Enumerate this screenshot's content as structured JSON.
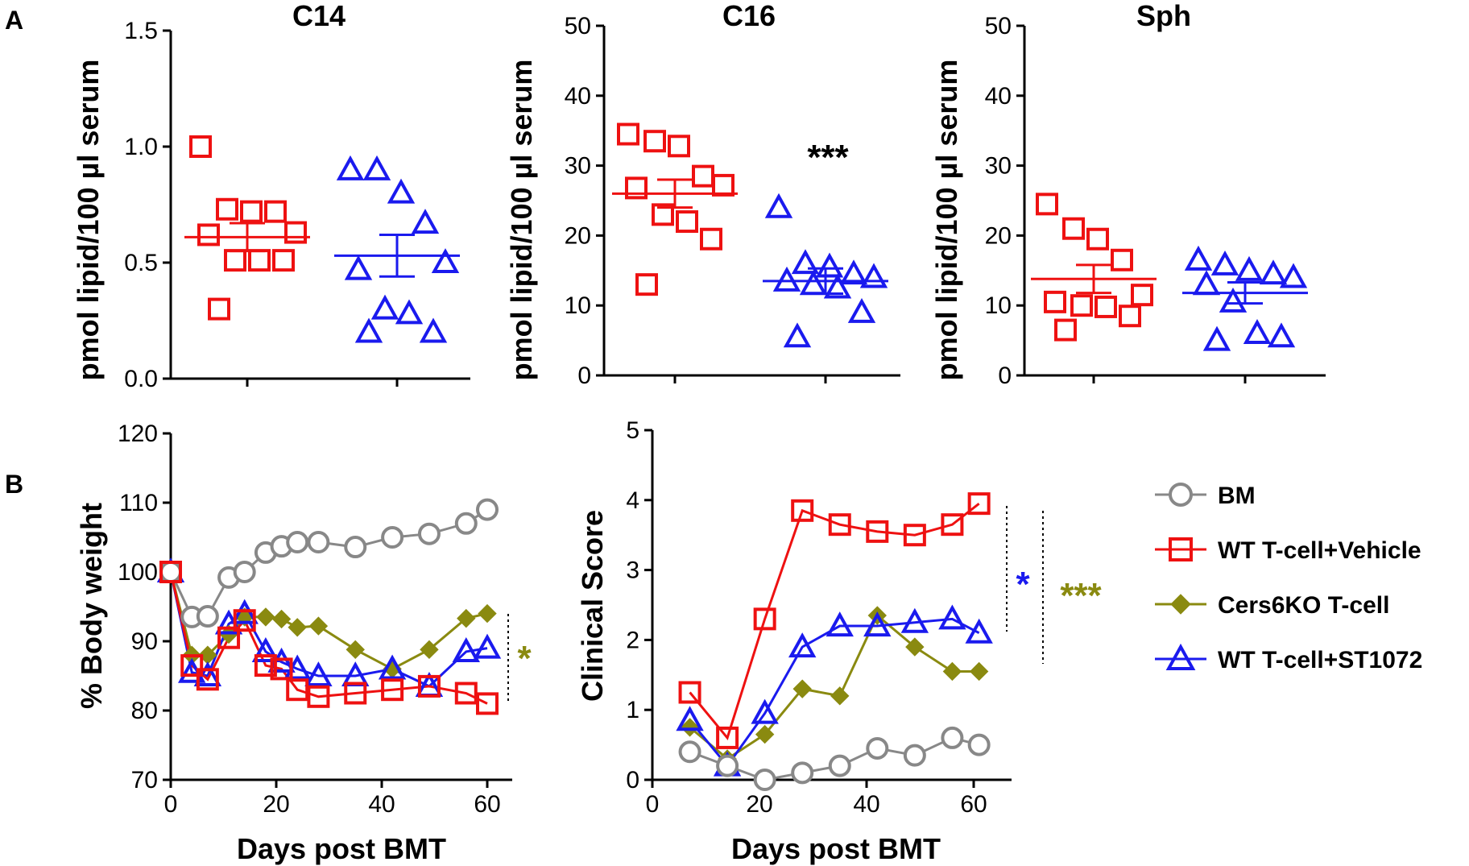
{
  "panel_labels": {
    "a": "A",
    "b": "B"
  },
  "colors": {
    "red": "#ee1111",
    "blue": "#1a1aee",
    "olive": "#8a8a10",
    "gray": "#888888",
    "black": "#000000"
  },
  "chart_data": [
    {
      "type": "scatter",
      "title": "C14",
      "ylabel": "pmol lipid/100 µl serum",
      "ylim": [
        0,
        1.5
      ],
      "yticks": [
        "0.0",
        "0.5",
        "1.0",
        "1.5"
      ],
      "groups": [
        {
          "name": "red squares",
          "color": "#ee1111",
          "marker": "square",
          "values": [
            1.0,
            0.73,
            0.72,
            0.72,
            0.63,
            0.62,
            0.51,
            0.51,
            0.51,
            0.3
          ],
          "mean": 0.61,
          "sem": 0.06
        },
        {
          "name": "blue triangles",
          "color": "#1a1aee",
          "marker": "triangle",
          "values": [
            0.9,
            0.9,
            0.8,
            0.67,
            0.5,
            0.47,
            0.3,
            0.28,
            0.2,
            0.2
          ],
          "mean": 0.53,
          "sem": 0.09
        }
      ],
      "significance": ""
    },
    {
      "type": "scatter",
      "title": "C16",
      "ylabel": "pmol lipid/100 µl serum",
      "ylim": [
        0,
        50
      ],
      "yticks": [
        "0",
        "10",
        "20",
        "30",
        "40",
        "50"
      ],
      "groups": [
        {
          "name": "red squares",
          "color": "#ee1111",
          "marker": "square",
          "values": [
            34.5,
            33.5,
            32.8,
            28.5,
            27.2,
            26.8,
            23.0,
            22.0,
            19.5,
            13.0
          ],
          "mean": 26.0,
          "sem": 2.0
        },
        {
          "name": "blue triangles",
          "color": "#1a1aee",
          "marker": "triangle",
          "values": [
            24.0,
            16.0,
            15.5,
            14.5,
            14.0,
            13.5,
            13.0,
            12.5,
            9.0,
            5.5
          ],
          "mean": 13.5,
          "sem": 1.8
        }
      ],
      "significance": "***"
    },
    {
      "type": "scatter",
      "title": "Sph",
      "ylabel": "pmol lipid/100 µl serum",
      "ylim": [
        0,
        50
      ],
      "yticks": [
        "0",
        "10",
        "20",
        "30",
        "40",
        "50"
      ],
      "groups": [
        {
          "name": "red squares",
          "color": "#ee1111",
          "marker": "square",
          "values": [
            24.5,
            21.0,
            19.5,
            16.5,
            11.5,
            10.5,
            10.0,
            9.8,
            8.5,
            6.5
          ],
          "mean": 13.8,
          "sem": 2.0
        },
        {
          "name": "blue triangles",
          "color": "#1a1aee",
          "marker": "triangle",
          "values": [
            16.5,
            15.8,
            15.0,
            14.5,
            14.0,
            13.0,
            10.5,
            6.0,
            5.5,
            5.0
          ],
          "mean": 11.8,
          "sem": 1.5
        }
      ],
      "significance": ""
    },
    {
      "type": "line",
      "title": "",
      "xlabel": "Days post BMT",
      "ylabel": "% Body weight",
      "xlim": [
        0,
        65
      ],
      "ylim": [
        70,
        120
      ],
      "xticks": [
        "0",
        "20",
        "40",
        "60"
      ],
      "yticks": [
        "70",
        "80",
        "90",
        "100",
        "110",
        "120"
      ],
      "series": [
        {
          "name": "BM",
          "color": "#888888",
          "marker": "circle",
          "x": [
            0,
            4,
            7,
            11,
            14,
            18,
            21,
            24,
            28,
            35,
            42,
            49,
            56,
            60
          ],
          "y": [
            100,
            93.5,
            93.6,
            99.2,
            100,
            102.8,
            103.7,
            104.3,
            104.3,
            103.6,
            105,
            105.5,
            107,
            109
          ]
        },
        {
          "name": "WT T-cell+Vehicle",
          "color": "#ee1111",
          "marker": "square",
          "x": [
            0,
            4,
            7,
            11,
            14,
            18,
            21,
            24,
            28,
            35,
            42,
            49,
            56,
            60
          ],
          "y": [
            100,
            86.5,
            84.5,
            90.5,
            93,
            86.5,
            86,
            83,
            82,
            82.5,
            83,
            83.5,
            82.5,
            81
          ]
        },
        {
          "name": "Cers6KO T-cell",
          "color": "#8a8a10",
          "marker": "diamond",
          "x": [
            0,
            4,
            7,
            11,
            14,
            18,
            21,
            24,
            28,
            35,
            42,
            49,
            56,
            60
          ],
          "y": [
            100,
            88,
            88,
            91,
            93.5,
            93.5,
            93.2,
            92,
            92.2,
            88.8,
            86,
            88.8,
            93.3,
            94
          ]
        },
        {
          "name": "WT T-cell+ST1072",
          "color": "#1a1aee",
          "marker": "triangle",
          "x": [
            0,
            4,
            7,
            11,
            14,
            18,
            21,
            24,
            28,
            35,
            42,
            49,
            56,
            60
          ],
          "y": [
            100,
            85.5,
            85,
            92.5,
            94,
            88.5,
            87,
            86,
            85,
            85,
            86,
            83.5,
            88.5,
            89
          ]
        }
      ],
      "significance": "*"
    },
    {
      "type": "line",
      "title": "",
      "xlabel": "Days post BMT",
      "ylabel": "Clinical Score",
      "xlim": [
        0,
        66
      ],
      "ylim": [
        0,
        5
      ],
      "xticks": [
        "0",
        "20",
        "40",
        "60"
      ],
      "yticks": [
        "0",
        "1",
        "2",
        "3",
        "4",
        "5"
      ],
      "series": [
        {
          "name": "BM",
          "color": "#888888",
          "marker": "circle",
          "x": [
            7,
            14,
            21,
            28,
            35,
            42,
            49,
            56,
            61
          ],
          "y": [
            0.4,
            0.2,
            0,
            0.1,
            0.2,
            0.45,
            0.35,
            0.6,
            0.5
          ]
        },
        {
          "name": "WT T-cell+Vehicle",
          "color": "#ee1111",
          "marker": "square",
          "x": [
            7,
            14,
            21,
            28,
            35,
            42,
            49,
            56,
            61
          ],
          "y": [
            1.25,
            0.6,
            2.3,
            3.85,
            3.65,
            3.55,
            3.5,
            3.65,
            3.95
          ]
        },
        {
          "name": "Cers6KO T-cell",
          "color": "#8a8a10",
          "marker": "diamond",
          "x": [
            7,
            14,
            21,
            28,
            35,
            42,
            49,
            56,
            61
          ],
          "y": [
            0.75,
            0.3,
            0.65,
            1.3,
            1.2,
            2.35,
            1.9,
            1.55,
            1.55
          ]
        },
        {
          "name": "WT T-cell+ST1072",
          "color": "#1a1aee",
          "marker": "triangle",
          "x": [
            7,
            14,
            21,
            28,
            35,
            42,
            49,
            56,
            61
          ],
          "y": [
            0.85,
            0.2,
            0.95,
            1.9,
            2.2,
            2.2,
            2.25,
            2.3,
            2.1
          ]
        }
      ],
      "significance": [
        "*",
        "***"
      ]
    }
  ],
  "legend": [
    {
      "label": "BM",
      "color": "#888888",
      "marker": "circle"
    },
    {
      "label": "WT T-cell+Vehicle",
      "color": "#ee1111",
      "marker": "square"
    },
    {
      "label": "Cers6KO T-cell",
      "color": "#8a8a10",
      "marker": "diamond"
    },
    {
      "label": "WT T-cell+ST1072",
      "color": "#1a1aee",
      "marker": "triangle"
    }
  ]
}
